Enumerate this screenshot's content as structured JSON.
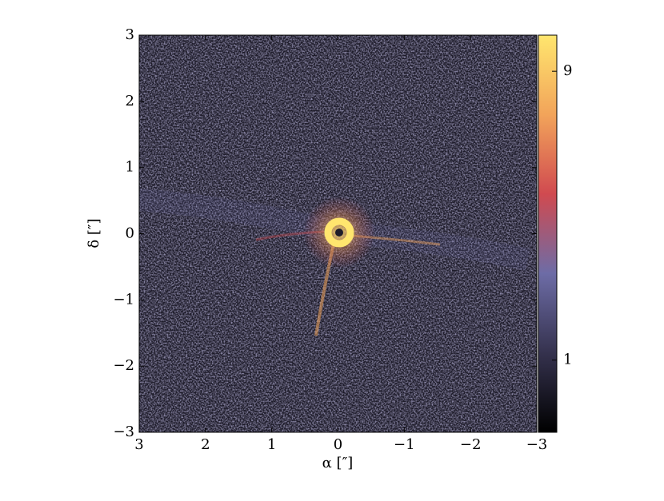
{
  "chart_data": {
    "type": "image",
    "xlabel": "α [″]",
    "ylabel": "δ [″]",
    "xlim": [
      3,
      -3
    ],
    "ylim": [
      -3,
      3
    ],
    "xticks": [
      3,
      2,
      1,
      0,
      {
        "value": -1,
        "label": "−1"
      },
      {
        "value": -2,
        "label": "−2"
      },
      {
        "value": -3,
        "label": "−3"
      }
    ],
    "yticks": [
      {
        "value": -3,
        "label": "−3"
      },
      {
        "value": -2,
        "label": "−2"
      },
      {
        "value": -1,
        "label": "−1"
      },
      0,
      1,
      2,
      3
    ],
    "colorbar": {
      "clim": [
        -1,
        10
      ],
      "ticks": [
        1,
        9
      ],
      "cmap": [
        "#000000",
        "#35324e",
        "#6d6ca6",
        "#d04a50",
        "#f2a45a",
        "#ffe66e"
      ]
    }
  }
}
